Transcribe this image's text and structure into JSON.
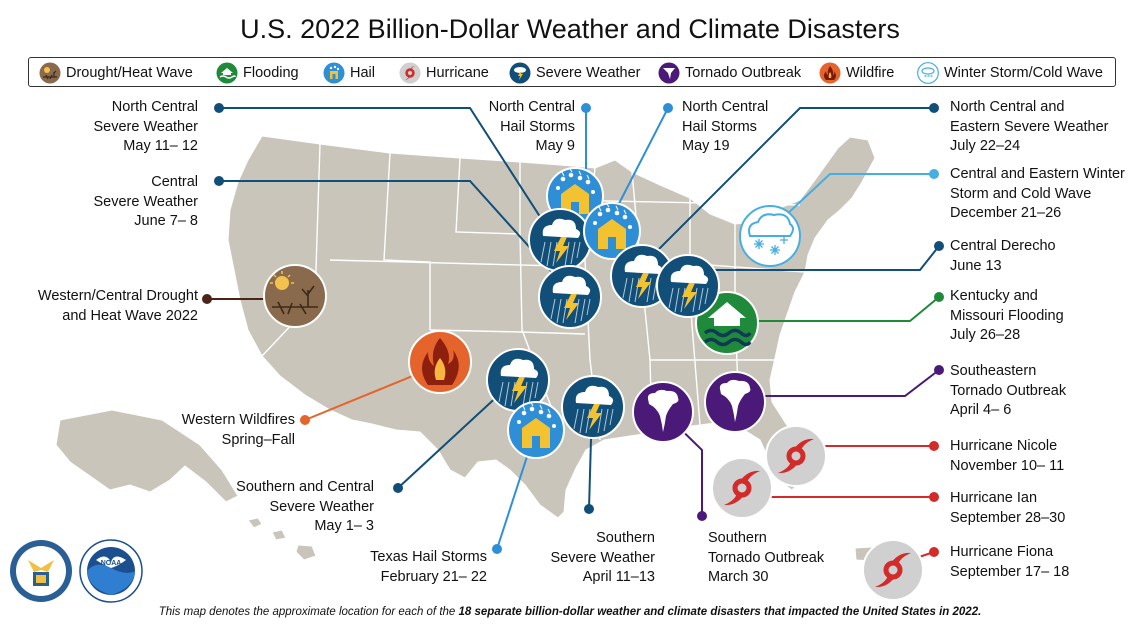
{
  "title": "U.S. 2022 Billion-Dollar Weather and Climate Disasters",
  "legend": {
    "drought": "Drought/Heat Wave",
    "flooding": "Flooding",
    "hail": "Hail",
    "hurricane": "Hurricane",
    "severe": "Severe Weather",
    "tornado": "Tornado Outbreak",
    "wildfire": "Wildfire",
    "winter": "Winter Storm/Cold Wave"
  },
  "colors": {
    "drought": "#8a6a4c",
    "flooding": "#1f8a3a",
    "hail": "#2f8fd6",
    "hurricane": "#d32a2a",
    "severe": "#114e78",
    "tornado": "#4b1a78",
    "wildfire": "#e5642c",
    "winter": "#46aee0",
    "land": "#c9c5bb"
  },
  "events": [
    {
      "id": "nc-severe-may",
      "name": "North Central",
      "line2": "Severe Weather",
      "dates": "May 11– 12"
    },
    {
      "id": "central-severe-june",
      "name": "Central",
      "line2": "Severe Weather",
      "dates": "June 7– 8"
    },
    {
      "id": "western-drought",
      "name": "Western/Central Drought",
      "line2": "and Heat Wave 2022"
    },
    {
      "id": "western-wildfires",
      "name": "Western Wildfires",
      "line2": "Spring–Fall"
    },
    {
      "id": "southern-central-severe",
      "name": "Southern and Central",
      "line2": "Severe Weather",
      "dates": "May 1– 3"
    },
    {
      "id": "texas-hail",
      "name": "Texas Hail Storms",
      "dates": "February 21– 22"
    },
    {
      "id": "southern-severe-april",
      "name": "Southern",
      "line2": "Severe Weather",
      "dates": "April 11–13"
    },
    {
      "id": "southern-tornado",
      "name": "Southern",
      "line2": "Tornado Outbreak",
      "dates": "March 30"
    },
    {
      "id": "nc-hail-may9",
      "name": "North Central",
      "line2": "Hail Storms",
      "dates": "May 9"
    },
    {
      "id": "nc-hail-may19",
      "name": "North Central",
      "line2": "Hail Storms",
      "dates": "May 19"
    },
    {
      "id": "nc-eastern-severe",
      "name": "North Central and",
      "line2": "Eastern Severe Weather",
      "dates": "July 22–24"
    },
    {
      "id": "winter-storm",
      "name": "Central and Eastern Winter",
      "line2": "Storm and Cold Wave",
      "dates": "December 21–26"
    },
    {
      "id": "central-derecho",
      "name": "Central Derecho",
      "dates": "June 13"
    },
    {
      "id": "ky-mo-flooding",
      "name": "Kentucky and",
      "line2": "Missouri Flooding",
      "dates": "July 26–28"
    },
    {
      "id": "se-tornado",
      "name": "Southeastern",
      "line2": "Tornado Outbreak",
      "dates": "April 4– 6"
    },
    {
      "id": "hurricane-nicole",
      "name": "Hurricane Nicole",
      "dates": "November 10– 11"
    },
    {
      "id": "hurricane-ian",
      "name": "Hurricane Ian",
      "dates": "September 28–30"
    },
    {
      "id": "hurricane-fiona",
      "name": "Hurricane Fiona",
      "dates": "September 17– 18"
    }
  ],
  "footer": {
    "pre": "This map denotes the approximate location for each of the ",
    "bold": "18 separate billion-dollar weather and climate disasters that impacted the United States in 2022.",
    "post": ""
  },
  "logos": {
    "commerce": "DEPARTMENT OF COMMERCE • UNITED STATES OF AMERICA",
    "noaa": "NOAA"
  }
}
